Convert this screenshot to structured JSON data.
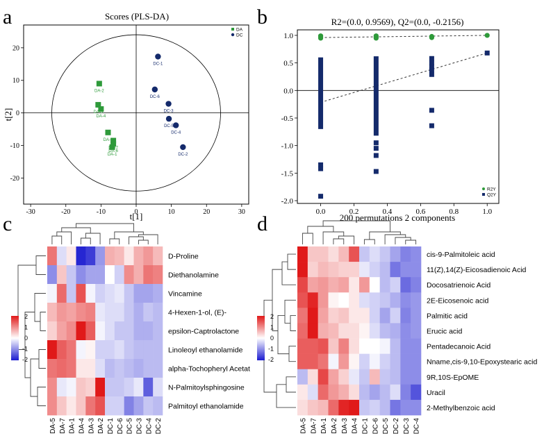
{
  "panels": {
    "a": "a",
    "b": "b",
    "c": "c",
    "d": "d"
  },
  "colors": {
    "green": "#2e9a3a",
    "navy": "#142a6b",
    "heat_low": "#1b1bd0",
    "heat_mid": "#ffffff",
    "heat_high": "#e01919"
  },
  "chart_data": [
    {
      "type": "scatter",
      "panel": "a",
      "title": "Scores (PLS-DA)",
      "xlabel": "t[1]",
      "ylabel": "t[2]",
      "xlim": [
        -32,
        32
      ],
      "ylim": [
        -28,
        27
      ],
      "xticks": [
        -30,
        -20,
        -10,
        0,
        10,
        20,
        30
      ],
      "yticks": [
        -20,
        -10,
        0,
        10,
        20
      ],
      "legend": [
        {
          "name": "DA",
          "color": "#2e9a3a",
          "marker": "square"
        },
        {
          "name": "DC",
          "color": "#142a6b",
          "marker": "circle"
        }
      ],
      "ellipse": {
        "cx": 0,
        "cy": 0,
        "rx": 24,
        "ry": 24
      },
      "series": [
        {
          "name": "DA",
          "points": [
            {
              "label": "DA-2",
              "x": -10.5,
              "y": 9
            },
            {
              "label": "DA-3",
              "x": -10.8,
              "y": 2.5
            },
            {
              "label": "DA-4",
              "x": -10,
              "y": 1.2
            },
            {
              "label": "DA-5",
              "x": -8,
              "y": -6
            },
            {
              "label": "DA-7",
              "x": -6.5,
              "y": -8.5
            },
            {
              "label": "DA-6",
              "x": -6.5,
              "y": -9.5
            },
            {
              "label": "DA-1",
              "x": -6.8,
              "y": -10.5
            }
          ]
        },
        {
          "name": "DC",
          "points": [
            {
              "label": "DC-1",
              "x": 6.2,
              "y": 17.3
            },
            {
              "label": "DC-6",
              "x": 5.3,
              "y": 7.2
            },
            {
              "label": "DC-3",
              "x": 9.2,
              "y": 2.8
            },
            {
              "label": "DC-5",
              "x": 9.3,
              "y": -1.8
            },
            {
              "label": "DC-4",
              "x": 11.3,
              "y": -3.8
            },
            {
              "label": "DC-2",
              "x": 13.3,
              "y": -10.5
            }
          ]
        }
      ]
    },
    {
      "type": "scatter",
      "panel": "b",
      "title": "R2=(0.0, 0.9569), Q2=(0.0, -0.2156)",
      "xlabel": "200 permutations 2 components",
      "ylabel": "",
      "xlim": [
        -0.14,
        1.07
      ],
      "ylim": [
        -2.05,
        1.1
      ],
      "xticks": [
        "0.0",
        "0.2",
        "0.4",
        "0.6",
        "0.8",
        "1.0"
      ],
      "yticks": [
        "1.0",
        "0.5",
        "0.0",
        "-0.5",
        "-1.0",
        "-1.5",
        "-2.0"
      ],
      "legend": [
        {
          "name": "R2Y",
          "color": "#2e9a3a",
          "marker": "circle"
        },
        {
          "name": "Q2Y",
          "color": "#142a6b",
          "marker": "square"
        }
      ],
      "r2_line": {
        "x": [
          0.0,
          1.0
        ],
        "y": [
          0.96,
          1.0
        ]
      },
      "q2_line": {
        "x": [
          0.0,
          1.0
        ],
        "y": [
          -0.2156,
          0.68
        ]
      },
      "series": [
        {
          "name": "R2Y",
          "points": [
            {
              "x": 0.0,
              "y": 0.99
            },
            {
              "x": 0.0,
              "y": 0.97
            },
            {
              "x": 0.0,
              "y": 0.95
            },
            {
              "x": 0.333,
              "y": 0.99
            },
            {
              "x": 0.333,
              "y": 0.97
            },
            {
              "x": 0.333,
              "y": 0.95
            },
            {
              "x": 0.667,
              "y": 0.98
            },
            {
              "x": 0.667,
              "y": 0.96
            },
            {
              "x": 1.0,
              "y": 1.0
            }
          ]
        },
        {
          "name": "Q2Y",
          "bars": [
            {
              "x": 0.0,
              "from": -0.7,
              "to": 0.6
            },
            {
              "x": 0.333,
              "from": -0.82,
              "to": 0.62
            }
          ],
          "points": [
            {
              "x": 0.0,
              "y": -1.35
            },
            {
              "x": 0.0,
              "y": -1.42
            },
            {
              "x": 0.0,
              "y": -1.92
            },
            {
              "x": 0.333,
              "y": -0.95
            },
            {
              "x": 0.333,
              "y": -1.05
            },
            {
              "x": 0.333,
              "y": -1.18
            },
            {
              "x": 0.333,
              "y": -1.47
            },
            {
              "x": 0.667,
              "y": 0.58
            },
            {
              "x": 0.667,
              "y": 0.5
            },
            {
              "x": 0.667,
              "y": 0.43
            },
            {
              "x": 0.667,
              "y": 0.37
            },
            {
              "x": 0.667,
              "y": 0.29
            },
            {
              "x": 0.667,
              "y": -0.36
            },
            {
              "x": 0.667,
              "y": -0.64
            },
            {
              "x": 1.0,
              "y": 0.68
            }
          ]
        }
      ]
    },
    {
      "type": "heatmap",
      "panel": "c",
      "columns": [
        "DA-5",
        "DA-7",
        "DA-1",
        "DA-4",
        "DA-3",
        "DA-2",
        "DC-1",
        "DC-6",
        "DC-5",
        "DC-3",
        "DC-4",
        "DC-2"
      ],
      "rows": [
        "D-Proline",
        "Diethanolamine",
        "Vincamine",
        "4-Hexen-1-ol, (E)-",
        "epsilon-Captrolactone",
        "Linoleoyl ethanolamide",
        "alpha-Tochopheryl Acetat",
        "N-Palmitoylsphingosine",
        "Palmitoyl ethanolamide"
      ],
      "scale": {
        "min": -2,
        "max": 2,
        "ticks": [
          "2",
          "1",
          "0",
          "-1",
          "-2"
        ]
      },
      "values": [
        [
          1.2,
          -0.3,
          0.2,
          -1.9,
          -1.7,
          -0.9,
          0.7,
          0.6,
          0.2,
          0.7,
          0.9,
          0.6
        ],
        [
          -1.0,
          0.5,
          -0.5,
          -1.0,
          -0.8,
          -0.8,
          0.0,
          -0.4,
          1.0,
          0.7,
          1.2,
          1.1
        ],
        [
          -0.1,
          1.3,
          -0.5,
          1.5,
          -0.1,
          -0.4,
          -0.3,
          -0.2,
          -0.5,
          -0.8,
          -0.8,
          -0.7
        ],
        [
          0.6,
          0.9,
          0.8,
          1.0,
          1.1,
          -0.2,
          -0.3,
          -0.3,
          -0.5,
          -0.7,
          -0.5,
          -0.6
        ],
        [
          0.4,
          0.8,
          1.0,
          2.0,
          1.4,
          -0.1,
          -0.3,
          -0.5,
          -0.5,
          -0.7,
          -0.7,
          -0.6
        ],
        [
          2.0,
          1.4,
          1.2,
          -0.1,
          0.1,
          -0.4,
          -0.4,
          -0.3,
          -0.5,
          -0.6,
          -0.6,
          -0.6
        ],
        [
          1.2,
          1.3,
          1.2,
          0.2,
          0.2,
          -0.3,
          -0.6,
          -0.5,
          -0.6,
          -0.7,
          -0.6,
          -0.6
        ],
        [
          1.0,
          -0.2,
          -0.1,
          0.5,
          0.4,
          2.0,
          -0.5,
          -0.5,
          -0.4,
          -0.2,
          -1.4,
          -0.3
        ],
        [
          1.0,
          0.5,
          0.2,
          0.5,
          1.2,
          1.5,
          -0.4,
          -0.4,
          -1.1,
          -0.8,
          -0.5,
          -0.6
        ]
      ]
    },
    {
      "type": "heatmap",
      "panel": "d",
      "columns": [
        "DA-5",
        "DA-7",
        "DA-1",
        "DA-2",
        "DA-3",
        "DA-4",
        "DC-1",
        "DC-6",
        "DC-5",
        "DC-2",
        "DC-3",
        "DC-4"
      ],
      "rows": [
        "cis-9-Palmitoleic acid",
        "11(Z),14(Z)-Eicosadienoic Acid",
        "Docosatrienoic Acid",
        "2E-Eicosenoic acid",
        "Palmitic acid",
        "Erucic acid",
        "Pentadecanoic Acid",
        "Nname,cis-9,10-Epoxystearic acid",
        "9R,10S-EpOME",
        "Uracil",
        "2-Methylbenzoic acid"
      ],
      "scale": {
        "min": -2,
        "max": 2,
        "ticks": [
          "2",
          "1",
          "0",
          "-1",
          "-2"
        ]
      },
      "values": [
        [
          2.0,
          0.5,
          0.5,
          0.3,
          0.6,
          1.5,
          -0.5,
          -0.3,
          -0.5,
          -0.8,
          -1.1,
          -1.0
        ],
        [
          2.0,
          0.4,
          0.6,
          0.5,
          0.4,
          0.4,
          -0.2,
          -0.4,
          -0.6,
          -1.2,
          -1.0,
          -1.0
        ],
        [
          1.6,
          0.8,
          0.9,
          0.7,
          0.8,
          0.2,
          0.9,
          0.0,
          -0.6,
          -0.4,
          -1.3,
          -1.1
        ],
        [
          1.5,
          1.9,
          0.9,
          0.1,
          0.0,
          0.2,
          -0.3,
          -0.4,
          -0.5,
          -0.7,
          -1.0,
          -0.9
        ],
        [
          1.2,
          2.0,
          0.8,
          0.4,
          0.5,
          0.2,
          0.2,
          -0.4,
          -0.8,
          -0.4,
          -1.1,
          -0.9
        ],
        [
          1.3,
          2.0,
          0.7,
          0.6,
          0.3,
          0.3,
          0.1,
          -0.3,
          -0.6,
          -0.7,
          -1.0,
          -0.9
        ],
        [
          1.4,
          1.4,
          1.5,
          0.5,
          1.1,
          0.3,
          0.0,
          0.0,
          -0.1,
          -0.6,
          -1.0,
          -1.0
        ],
        [
          1.4,
          1.4,
          1.2,
          -0.1,
          0.9,
          0.1,
          -0.4,
          -0.1,
          -0.4,
          -0.6,
          -1.0,
          -1.0
        ],
        [
          -0.6,
          0.3,
          1.6,
          0.8,
          0.4,
          -0.2,
          -0.5,
          0.6,
          -0.5,
          -0.6,
          -1.0,
          -1.0
        ],
        [
          0.2,
          -0.3,
          1.3,
          0.9,
          0.7,
          0.3,
          -0.6,
          -0.8,
          -0.6,
          -0.3,
          -1.1,
          -1.5
        ],
        [
          0.3,
          0.5,
          0.6,
          1.3,
          1.9,
          2.0,
          -0.5,
          -0.4,
          -0.6,
          -1.2,
          -1.0,
          -1.0
        ]
      ]
    }
  ]
}
